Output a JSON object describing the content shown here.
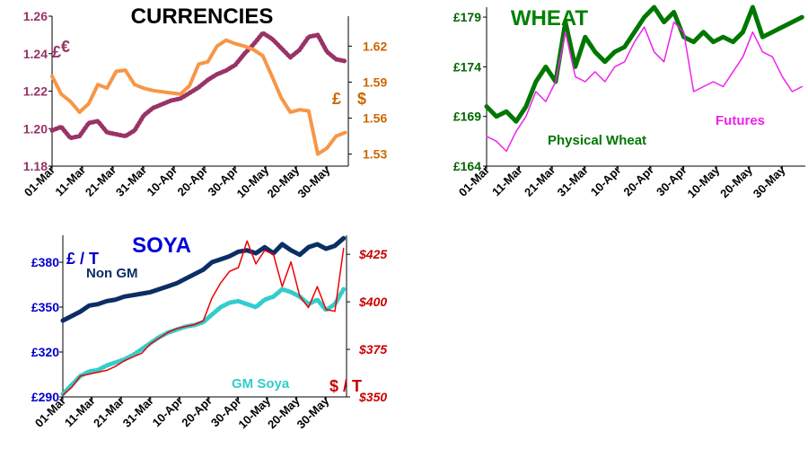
{
  "chart_data": [
    {
      "id": "currencies",
      "type": "line",
      "title": "CURRENCIES",
      "x_ticks": [
        "01-Mar",
        "11-Mar",
        "21-Mar",
        "31-Mar",
        "10-Apr",
        "20-Apr",
        "30-Apr",
        "10-May",
        "20-May",
        "30-May"
      ],
      "y_left": {
        "ticks": [
          "1.18",
          "1.20",
          "1.22",
          "1.24",
          "1.26"
        ],
        "range": [
          1.18,
          1.26
        ],
        "unit_labels": [
          "£",
          "€"
        ],
        "color": "#993366"
      },
      "y_right": {
        "ticks": [
          "1.53",
          "1.56",
          "1.59",
          "1.62"
        ],
        "range": [
          1.52,
          1.645
        ],
        "unit_labels": [
          "£",
          "$"
        ],
        "color": "#cc6600"
      },
      "series": [
        {
          "axis": "left",
          "color": "#993366",
          "style": "dotted",
          "x": [
            0,
            3,
            6,
            9,
            12,
            15,
            18,
            21,
            24,
            27,
            30,
            33,
            36,
            39,
            42,
            45,
            48,
            51,
            54,
            57,
            60,
            63,
            66,
            69,
            72,
            75,
            78,
            81,
            84,
            87,
            90,
            93,
            96
          ],
          "y": [
            1.199,
            1.201,
            1.195,
            1.196,
            1.203,
            1.204,
            1.198,
            1.197,
            1.196,
            1.199,
            1.207,
            1.211,
            1.213,
            1.215,
            1.216,
            1.219,
            1.222,
            1.226,
            1.229,
            1.231,
            1.234,
            1.24,
            1.245,
            1.251,
            1.248,
            1.243,
            1.238,
            1.242,
            1.249,
            1.25,
            1.241,
            1.237,
            1.236
          ]
        },
        {
          "axis": "right",
          "color": "#f79646",
          "style": "solid",
          "x": [
            0,
            3,
            6,
            9,
            12,
            15,
            18,
            21,
            24,
            27,
            30,
            33,
            36,
            39,
            42,
            45,
            48,
            51,
            54,
            57,
            60,
            63,
            66,
            69,
            72,
            75,
            78,
            81,
            84,
            87,
            90,
            93,
            96
          ],
          "y": [
            1.595,
            1.58,
            1.574,
            1.565,
            1.572,
            1.588,
            1.585,
            1.599,
            1.6,
            1.588,
            1.585,
            1.583,
            1.582,
            1.581,
            1.58,
            1.587,
            1.605,
            1.607,
            1.62,
            1.625,
            1.622,
            1.62,
            1.617,
            1.612,
            1.595,
            1.577,
            1.565,
            1.567,
            1.566,
            1.53,
            1.535,
            1.545,
            1.548
          ]
        }
      ]
    },
    {
      "id": "wheat",
      "type": "line",
      "title": "WHEAT",
      "x_ticks": [
        "01-Mar",
        "11-Mar",
        "21-Mar",
        "31-Mar",
        "10-Apr",
        "20-Apr",
        "30-Apr",
        "10-May",
        "20-May",
        "30-May"
      ],
      "y_left": {
        "ticks": [
          "£164",
          "£169",
          "£174",
          "£179"
        ],
        "range": [
          164,
          180
        ],
        "color": "#006600"
      },
      "series": [
        {
          "name": "Physical Wheat",
          "color": "#007700",
          "style": "solid-thick",
          "x": [
            0,
            3,
            6,
            9,
            12,
            15,
            18,
            21,
            24,
            27,
            30,
            33,
            36,
            39,
            42,
            45,
            48,
            51,
            54,
            57,
            60,
            63,
            66,
            69,
            72,
            75,
            78,
            81,
            84,
            87,
            90,
            93,
            96
          ],
          "y": [
            170.0,
            169.0,
            169.5,
            168.5,
            170.0,
            172.5,
            174.0,
            172.5,
            178.5,
            174.0,
            177.0,
            175.5,
            174.5,
            175.5,
            176.0,
            177.5,
            179.0,
            180.0,
            178.5,
            179.5,
            177.0,
            176.5,
            177.5,
            176.5,
            177.0,
            176.5,
            177.5,
            180.0,
            177.0,
            177.5,
            178.0,
            178.5,
            179.0
          ]
        },
        {
          "name": "Futures",
          "color": "#ee22ee",
          "style": "solid-thin",
          "x": [
            0,
            3,
            6,
            9,
            12,
            15,
            18,
            21,
            24,
            27,
            30,
            33,
            36,
            39,
            42,
            45,
            48,
            51,
            54,
            57,
            60,
            63,
            66,
            69,
            72,
            75,
            78,
            81,
            84,
            87,
            90,
            93,
            96
          ],
          "y": [
            167.0,
            166.5,
            165.5,
            167.5,
            169.0,
            171.5,
            170.5,
            172.5,
            177.5,
            173.0,
            172.5,
            173.5,
            172.5,
            174.0,
            174.5,
            176.5,
            178.0,
            175.5,
            174.5,
            178.5,
            177.5,
            171.5,
            172.0,
            172.5,
            172.0,
            173.5,
            175.0,
            177.5,
            175.5,
            175.0,
            173.0,
            171.5,
            172.0
          ]
        }
      ]
    },
    {
      "id": "soya",
      "type": "line",
      "title": "SOYA",
      "x_ticks": [
        "01-Mar",
        "11-Mar",
        "21-Mar",
        "31-Mar",
        "10-Apr",
        "20-Apr",
        "30-Apr",
        "10-May",
        "20-May",
        "30-May"
      ],
      "y_left": {
        "ticks": [
          "£290",
          "£320",
          "£350",
          "£380"
        ],
        "range": [
          290,
          398
        ],
        "unit_label": "£ / T",
        "color": "#0000cc"
      },
      "y_right": {
        "ticks": [
          "$350",
          "$375",
          "$400",
          "$425"
        ],
        "range": [
          350,
          435
        ],
        "unit_label": "$ / T",
        "color": "#cc0000"
      },
      "series": [
        {
          "name": "Non GM",
          "axis": "left",
          "color": "#0b2e66",
          "style": "solid-thick",
          "x": [
            0,
            3,
            6,
            9,
            12,
            15,
            18,
            21,
            24,
            27,
            30,
            33,
            36,
            39,
            42,
            45,
            48,
            51,
            54,
            57,
            60,
            63,
            66,
            69,
            72,
            75,
            78,
            81,
            84,
            87,
            90,
            93,
            96
          ],
          "y": [
            341,
            344,
            347,
            351,
            352,
            354,
            355,
            357,
            358,
            359,
            360,
            362,
            364,
            366,
            369,
            372,
            375,
            380,
            382,
            384,
            387,
            388,
            386,
            390,
            386,
            392,
            388,
            385,
            390,
            392,
            389,
            391,
            396
          ]
        },
        {
          "name": "GM Soya",
          "axis": "left",
          "color": "#33cccc",
          "style": "dotted",
          "x": [
            0,
            3,
            6,
            9,
            12,
            15,
            18,
            21,
            24,
            27,
            30,
            33,
            36,
            39,
            42,
            45,
            48,
            51,
            54,
            57,
            60,
            63,
            66,
            69,
            72,
            75,
            78,
            81,
            84,
            87,
            90,
            93,
            96
          ],
          "y": [
            292,
            298,
            304,
            307,
            308,
            311,
            313,
            315,
            318,
            322,
            326,
            330,
            333,
            335,
            337,
            338,
            340,
            345,
            350,
            353,
            354,
            352,
            350,
            355,
            357,
            362,
            360,
            357,
            352,
            355,
            348,
            352,
            362
          ]
        },
        {
          "name": "",
          "axis": "right",
          "color": "#ee0000",
          "style": "solid-thin",
          "x": [
            0,
            3,
            6,
            9,
            12,
            15,
            18,
            21,
            24,
            27,
            30,
            33,
            36,
            39,
            42,
            45,
            48,
            51,
            54,
            57,
            60,
            63,
            66,
            69,
            72,
            75,
            78,
            81,
            84,
            87,
            90,
            93,
            96
          ],
          "y": [
            351,
            355,
            361,
            362,
            363,
            364,
            366,
            369,
            371,
            373,
            378,
            381,
            384,
            386,
            387,
            388,
            390,
            402,
            410,
            416,
            418,
            432,
            420,
            427,
            425,
            408,
            421,
            403,
            397,
            408,
            396,
            395,
            428
          ]
        }
      ]
    }
  ],
  "colors": {
    "currencies_title": "#000000",
    "wheat_title": "#008000",
    "soya_title": "#0000dd"
  }
}
